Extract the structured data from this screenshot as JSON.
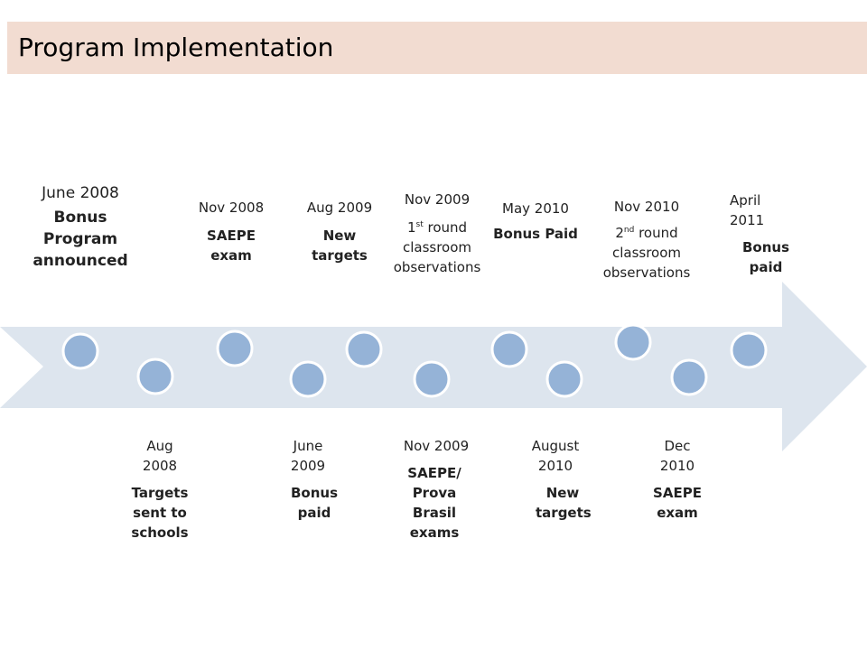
{
  "title": "Program Implementation",
  "colors": {
    "title_bg": "#f2dcd1",
    "arrow_fill": "#dde5ee",
    "node_fill": "#95b3d7",
    "node_stroke": "#ffffff"
  },
  "events_above": [
    {
      "date": "June 2008",
      "desc": "Bonus Program announced"
    },
    {
      "date": "Nov 2008",
      "desc": "SAEPE exam"
    },
    {
      "date": "Aug 2009",
      "desc": "New targets"
    },
    {
      "date": "Nov 2009",
      "desc_prefix": "1",
      "desc_sup": "st",
      "desc_suffix": " round classroom observations"
    },
    {
      "date": "May 2010",
      "desc": "Bonus Paid"
    },
    {
      "date": "Nov 2010",
      "desc_prefix": "2",
      "desc_sup": "nd",
      "desc_suffix": " round classroom observations"
    },
    {
      "date": "April 2011",
      "desc": "Bonus paid"
    }
  ],
  "events_below": [
    {
      "date": "Aug 2008",
      "desc": "Targets sent to schools"
    },
    {
      "date": "June 2009",
      "desc": "Bonus paid"
    },
    {
      "date": "Nov 2009",
      "desc": "SAEPE/ Prova Brasil exams"
    },
    {
      "date": "August 2010",
      "desc": "New targets"
    },
    {
      "date": "Dec 2010",
      "desc": "SAEPE exam"
    }
  ]
}
